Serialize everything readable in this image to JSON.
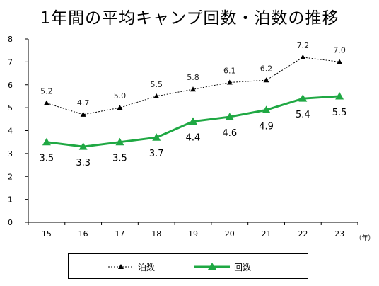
{
  "chart_data": {
    "type": "line",
    "title": "1年間の平均キャンプ回数・泊数の推移",
    "x": [
      "15",
      "16",
      "17",
      "18",
      "19",
      "20",
      "21",
      "22",
      "23"
    ],
    "x_unit": "（年）",
    "ylim": [
      0,
      8
    ],
    "yticks": [
      "0",
      "1",
      "2",
      "3",
      "4",
      "5",
      "6",
      "7",
      "8"
    ],
    "grid": false,
    "legend_position": "bottom",
    "series": [
      {
        "name": "泊数",
        "values": [
          5.2,
          4.7,
          5.0,
          5.5,
          5.8,
          6.1,
          6.2,
          7.2,
          7.0
        ],
        "labels": [
          "5.2",
          "4.7",
          "5.0",
          "5.5",
          "5.8",
          "6.1",
          "6.2",
          "7.2",
          "7.0"
        ],
        "color": "#000000",
        "style": "dotted"
      },
      {
        "name": "回数",
        "values": [
          3.5,
          3.3,
          3.5,
          3.7,
          4.4,
          4.6,
          4.9,
          5.4,
          5.5
        ],
        "labels": [
          "3.5",
          "3.3",
          "3.5",
          "3.7",
          "4.4",
          "4.6",
          "4.9",
          "5.4",
          "5.5"
        ],
        "color": "#1fa843",
        "style": "solid"
      }
    ]
  }
}
